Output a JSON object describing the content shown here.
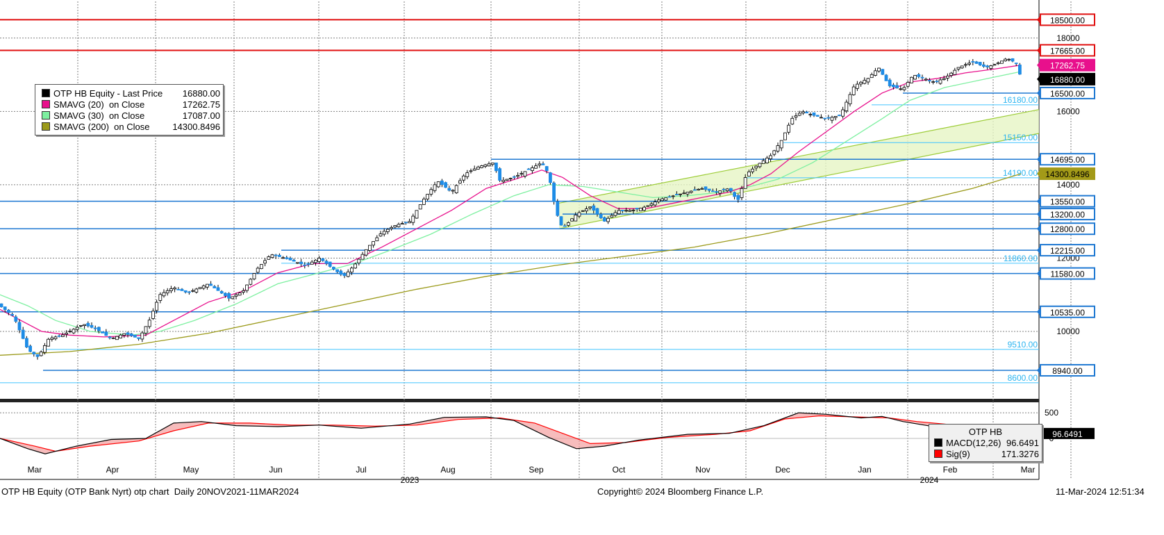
{
  "chart_data": [
    {
      "type": "line",
      "title": "OTP HB Equity (OTP Bank Nyrt) otp chart  Daily 20NOV2021-11MAR2024",
      "x_ticks_months": [
        "Mar",
        "Apr",
        "May",
        "Jun",
        "Jul",
        "Aug",
        "Sep",
        "Oct",
        "Nov",
        "Dec",
        "Jan",
        "Feb",
        "Mar"
      ],
      "x_ticks_years": [
        "2023",
        "2024"
      ],
      "y_ticks": [
        10000,
        12000,
        14000,
        16000,
        18000
      ],
      "y_tick_labels": [
        "10000",
        "12000",
        "14000",
        "16000",
        "18000"
      ],
      "ylim": [
        8200,
        19000
      ],
      "grid": true,
      "series": [
        {
          "name": "OTP HB Equity - Last Price",
          "last": "16880.00",
          "color": "#000000"
        },
        {
          "name": "SMAVG (20)  on Close",
          "last": "17262.75",
          "color": "#e8108c"
        },
        {
          "name": "SMAVG (30)  on Close",
          "last": "17087.00",
          "color": "#7df0a0"
        },
        {
          "name": "SMAVG (200)  on Close",
          "last": "14300.8496",
          "color": "#9b9a1a"
        }
      ],
      "price_path": [
        [
          0,
          10700
        ],
        [
          20,
          10400
        ],
        [
          40,
          9500
        ],
        [
          55,
          9300
        ],
        [
          70,
          9800
        ],
        [
          90,
          9900
        ],
        [
          120,
          10200
        ],
        [
          140,
          10050
        ],
        [
          160,
          9800
        ],
        [
          180,
          9950
        ],
        [
          200,
          9800
        ],
        [
          215,
          10300
        ],
        [
          230,
          11000
        ],
        [
          250,
          11200
        ],
        [
          270,
          11050
        ],
        [
          300,
          11300
        ],
        [
          330,
          10900
        ],
        [
          350,
          11100
        ],
        [
          370,
          11700
        ],
        [
          390,
          12100
        ],
        [
          410,
          12000
        ],
        [
          440,
          11800
        ],
        [
          460,
          12000
        ],
        [
          480,
          11700
        ],
        [
          495,
          11500
        ],
        [
          510,
          11800
        ],
        [
          530,
          12300
        ],
        [
          550,
          12700
        ],
        [
          570,
          12900
        ],
        [
          590,
          13000
        ],
        [
          610,
          13600
        ],
        [
          630,
          14100
        ],
        [
          650,
          13800
        ],
        [
          670,
          14300
        ],
        [
          690,
          14500
        ],
        [
          710,
          14600
        ],
        [
          720,
          14100
        ],
        [
          740,
          14200
        ],
        [
          760,
          14400
        ],
        [
          780,
          14600
        ],
        [
          790,
          14300
        ],
        [
          800,
          13300
        ],
        [
          810,
          12800
        ],
        [
          830,
          13200
        ],
        [
          850,
          13400
        ],
        [
          870,
          13000
        ],
        [
          890,
          13300
        ],
        [
          910,
          13300
        ],
        [
          930,
          13400
        ],
        [
          950,
          13600
        ],
        [
          970,
          13700
        ],
        [
          990,
          13800
        ],
        [
          1010,
          13900
        ],
        [
          1030,
          13800
        ],
        [
          1050,
          13900
        ],
        [
          1062,
          13550
        ],
        [
          1075,
          14300
        ],
        [
          1095,
          14600
        ],
        [
          1110,
          14800
        ],
        [
          1125,
          15200
        ],
        [
          1140,
          15800
        ],
        [
          1155,
          16000
        ],
        [
          1170,
          15900
        ],
        [
          1190,
          15800
        ],
        [
          1210,
          15900
        ],
        [
          1230,
          16700
        ],
        [
          1250,
          16900
        ],
        [
          1265,
          17200
        ],
        [
          1280,
          16700
        ],
        [
          1300,
          16600
        ],
        [
          1315,
          17000
        ],
        [
          1330,
          16900
        ],
        [
          1345,
          16800
        ],
        [
          1360,
          16900
        ],
        [
          1380,
          17200
        ],
        [
          1400,
          17350
        ],
        [
          1420,
          17200
        ],
        [
          1435,
          17300
        ],
        [
          1450,
          17450
        ],
        [
          1465,
          17300
        ],
        [
          1470,
          16880
        ]
      ],
      "sma20_path": [
        [
          0,
          10600
        ],
        [
          30,
          10300
        ],
        [
          60,
          10000
        ],
        [
          100,
          9900
        ],
        [
          150,
          9850
        ],
        [
          210,
          9900
        ],
        [
          250,
          10300
        ],
        [
          300,
          10800
        ],
        [
          350,
          11100
        ],
        [
          400,
          11600
        ],
        [
          450,
          11850
        ],
        [
          500,
          11850
        ],
        [
          550,
          12300
        ],
        [
          600,
          12800
        ],
        [
          650,
          13300
        ],
        [
          700,
          13900
        ],
        [
          750,
          14200
        ],
        [
          780,
          14400
        ],
        [
          810,
          14200
        ],
        [
          850,
          13700
        ],
        [
          890,
          13350
        ],
        [
          930,
          13350
        ],
        [
          970,
          13500
        ],
        [
          1010,
          13650
        ],
        [
          1050,
          13800
        ],
        [
          1080,
          14000
        ],
        [
          1110,
          14300
        ],
        [
          1150,
          14900
        ],
        [
          1190,
          15450
        ],
        [
          1230,
          16000
        ],
        [
          1270,
          16500
        ],
        [
          1310,
          16800
        ],
        [
          1350,
          16900
        ],
        [
          1390,
          17050
        ],
        [
          1430,
          17150
        ],
        [
          1470,
          17262
        ]
      ],
      "sma30_path": [
        [
          0,
          11000
        ],
        [
          40,
          10700
        ],
        [
          80,
          10300
        ],
        [
          130,
          10000
        ],
        [
          190,
          9900
        ],
        [
          230,
          10000
        ],
        [
          280,
          10300
        ],
        [
          340,
          10750
        ],
        [
          400,
          11300
        ],
        [
          460,
          11600
        ],
        [
          510,
          11850
        ],
        [
          560,
          12200
        ],
        [
          620,
          12650
        ],
        [
          680,
          13200
        ],
        [
          740,
          13700
        ],
        [
          790,
          14000
        ],
        [
          840,
          13950
        ],
        [
          890,
          13800
        ],
        [
          940,
          13650
        ],
        [
          990,
          13700
        ],
        [
          1040,
          13800
        ],
        [
          1080,
          13950
        ],
        [
          1120,
          14150
        ],
        [
          1170,
          14600
        ],
        [
          1220,
          15200
        ],
        [
          1270,
          15800
        ],
        [
          1310,
          16300
        ],
        [
          1360,
          16650
        ],
        [
          1410,
          16850
        ],
        [
          1470,
          17087
        ]
      ],
      "sma200_path": [
        [
          0,
          9350
        ],
        [
          100,
          9450
        ],
        [
          200,
          9650
        ],
        [
          300,
          9950
        ],
        [
          400,
          10350
        ],
        [
          500,
          10750
        ],
        [
          600,
          11150
        ],
        [
          700,
          11500
        ],
        [
          800,
          11800
        ],
        [
          900,
          12050
        ],
        [
          1000,
          12300
        ],
        [
          1100,
          12650
        ],
        [
          1200,
          13050
        ],
        [
          1300,
          13450
        ],
        [
          1400,
          13900
        ],
        [
          1470,
          14300
        ]
      ],
      "horizontal_levels": [
        {
          "value": 18500,
          "label": "18500.00",
          "style": "red-box"
        },
        {
          "value": 17665,
          "label": "17665.00",
          "style": "red-box"
        },
        {
          "value": 17262.75,
          "label": "17262.75",
          "style": "pink-box"
        },
        {
          "value": 16880,
          "label": "16880.00",
          "style": "black-box"
        },
        {
          "value": 16500,
          "label": "16500.00",
          "style": "blue-box"
        },
        {
          "value": 16180,
          "label": "16180.00",
          "style": "cyan-text"
        },
        {
          "value": 15150,
          "label": "15150.00",
          "style": "cyan-text"
        },
        {
          "value": 14695,
          "label": "14695.00",
          "style": "blue-box"
        },
        {
          "value": 14300.8496,
          "label": "14300.8496",
          "style": "olive-box"
        },
        {
          "value": 14190,
          "label": "14190.00",
          "style": "cyan-text"
        },
        {
          "value": 13550,
          "label": "13550.00",
          "style": "blue-box"
        },
        {
          "value": 13200,
          "label": "13200.00",
          "style": "blue-box"
        },
        {
          "value": 12800,
          "label": "12800.00",
          "style": "blue-box"
        },
        {
          "value": 12215,
          "label": "12215.00",
          "style": "blue-box"
        },
        {
          "value": 11860,
          "label": "11860.00",
          "style": "cyan-text"
        },
        {
          "value": 11580,
          "label": "11580.00",
          "style": "blue-box"
        },
        {
          "value": 10535,
          "label": "10535.00",
          "style": "blue-box"
        },
        {
          "value": 9510,
          "label": "9510.00",
          "style": "cyan-text"
        },
        {
          "value": 8940,
          "label": "8940.00",
          "style": "blue-box"
        },
        {
          "value": 8600,
          "label": "8600.00",
          "style": "cyan-text"
        }
      ]
    },
    {
      "type": "line",
      "title": "OTP HB",
      "y_ticks": [
        500,
        0
      ],
      "y_tick_labels": [
        "500",
        "0"
      ],
      "ylim": [
        -500,
        650
      ],
      "series": [
        {
          "name": "MACD(12,26)",
          "last": "96.6491",
          "color": "#000000"
        },
        {
          "name": "Sig(9)",
          "last": "171.3276",
          "color": "#ff0000"
        }
      ],
      "macd_path": [
        [
          0,
          0
        ],
        [
          40,
          -200
        ],
        [
          65,
          -300
        ],
        [
          110,
          -150
        ],
        [
          160,
          -20
        ],
        [
          210,
          0
        ],
        [
          250,
          300
        ],
        [
          290,
          330
        ],
        [
          340,
          250
        ],
        [
          400,
          230
        ],
        [
          460,
          260
        ],
        [
          520,
          200
        ],
        [
          590,
          280
        ],
        [
          640,
          410
        ],
        [
          700,
          420
        ],
        [
          740,
          350
        ],
        [
          790,
          20
        ],
        [
          830,
          -200
        ],
        [
          870,
          -150
        ],
        [
          920,
          -30
        ],
        [
          990,
          80
        ],
        [
          1050,
          100
        ],
        [
          1100,
          250
        ],
        [
          1150,
          500
        ],
        [
          1190,
          470
        ],
        [
          1240,
          400
        ],
        [
          1270,
          430
        ],
        [
          1300,
          330
        ],
        [
          1340,
          240
        ],
        [
          1380,
          210
        ],
        [
          1420,
          150
        ],
        [
          1470,
          96.6
        ]
      ],
      "signal_path": [
        [
          0,
          0
        ],
        [
          50,
          -150
        ],
        [
          80,
          -250
        ],
        [
          130,
          -150
        ],
        [
          200,
          -50
        ],
        [
          250,
          150
        ],
        [
          300,
          300
        ],
        [
          360,
          300
        ],
        [
          420,
          260
        ],
        [
          480,
          260
        ],
        [
          540,
          240
        ],
        [
          600,
          260
        ],
        [
          660,
          370
        ],
        [
          720,
          400
        ],
        [
          770,
          300
        ],
        [
          810,
          100
        ],
        [
          850,
          -100
        ],
        [
          900,
          -80
        ],
        [
          960,
          20
        ],
        [
          1030,
          80
        ],
        [
          1080,
          150
        ],
        [
          1130,
          380
        ],
        [
          1180,
          440
        ],
        [
          1230,
          420
        ],
        [
          1280,
          400
        ],
        [
          1320,
          330
        ],
        [
          1360,
          280
        ],
        [
          1400,
          220
        ],
        [
          1440,
          200
        ],
        [
          1470,
          171.3
        ]
      ]
    }
  ],
  "legend": {
    "rows": [
      {
        "label": "OTP HB Equity - Last Price",
        "value": "16880.00",
        "color": "#000000"
      },
      {
        "label": "SMAVG (20)  on Close",
        "value": "17262.75",
        "color": "#e8108c"
      },
      {
        "label": "SMAVG (30)  on Close",
        "value": "17087.00",
        "color": "#7df0a0"
      },
      {
        "label": "SMAVG (200)  on Close",
        "value": "14300.8496",
        "color": "#9b9a1a"
      }
    ]
  },
  "macd_legend": {
    "title": "OTP HB",
    "rows": [
      {
        "label": "MACD(12,26)",
        "value": "96.6491",
        "color": "#000000"
      },
      {
        "label": "Sig(9)",
        "value": "171.3276",
        "color": "#ff0000"
      }
    ],
    "last_value_label": "96.6491"
  },
  "footer": {
    "left": "OTP HB Equity (OTP Bank Nyrt) otp chart  Daily 20NOV2021-11MAR2024",
    "center": "Copyright© 2024 Bloomberg Finance L.P.",
    "right": "11-Mar-2024 12:51:34"
  },
  "colors": {
    "grid": "#7f7f7f",
    "level_line": "#1e78d2",
    "red_level": "#e01010",
    "channel_fill": "#e6f5c4",
    "channel_line": "#9ccc36",
    "up_candle": "#ffffff",
    "down_candle": "#1e8ce6"
  }
}
